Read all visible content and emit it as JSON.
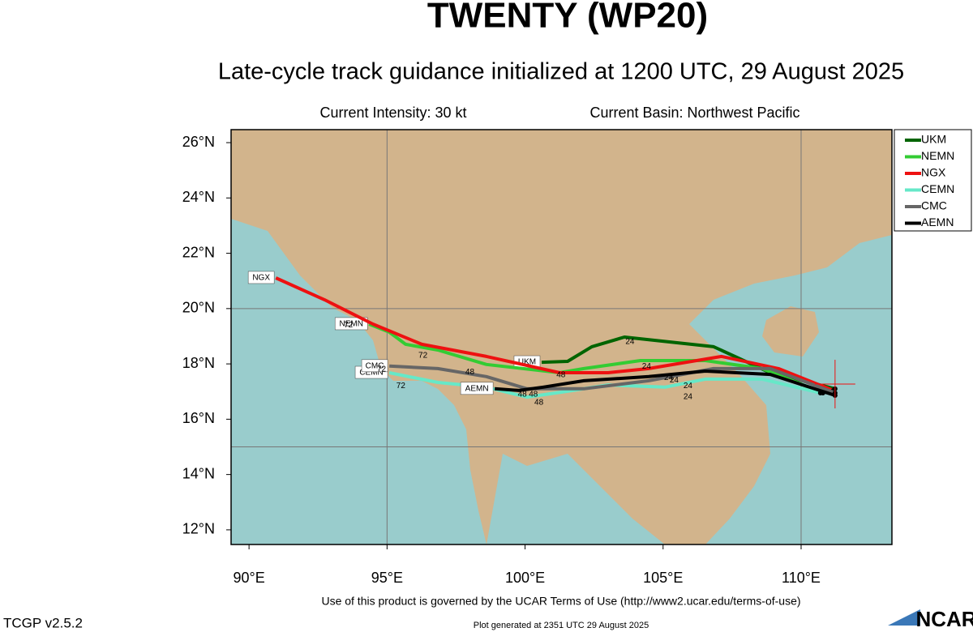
{
  "chart_data": {
    "type": "track",
    "title": "TWENTY (WP20)",
    "subtitle": "Late-cycle track guidance initialized at 1200 UTC, 29 August 2025",
    "intensity": "Current Intensity: 30 kt",
    "basin": "Current Basin: Northwest Pacific",
    "terms": "Use of this product is governed by the UCAR Terms of Use (http://www2.ucar.edu/terms-of-use)",
    "version": "TCGP v2.5.2",
    "generated": "Plot generated at 2351 UTC   29 August 2025",
    "logo": "NCAR",
    "xlim": [
      89.35,
      113.29
    ],
    "ylim": [
      11.47,
      26.47
    ],
    "xticks": [
      {
        "value": 90,
        "label": "90°E"
      },
      {
        "value": 95,
        "label": "95°E"
      },
      {
        "value": 100,
        "label": "100°E"
      },
      {
        "value": 105,
        "label": "105°E"
      },
      {
        "value": 110,
        "label": "110°E"
      }
    ],
    "yticks": [
      {
        "value": 12,
        "label": "12°N"
      },
      {
        "value": 14,
        "label": "14°N"
      },
      {
        "value": 16,
        "label": "16°N"
      },
      {
        "value": 18,
        "label": "18°N"
      },
      {
        "value": 20,
        "label": "20°N"
      },
      {
        "value": 22,
        "label": "22°N"
      },
      {
        "value": 24,
        "label": "24°N"
      },
      {
        "value": 26,
        "label": "26°N"
      }
    ],
    "grid_lon": [
      95,
      110
    ],
    "grid_lat": [
      15,
      20
    ],
    "storm_position": [
      111.23,
      17.27
    ],
    "series": [
      {
        "name": "UKM",
        "color": "#006400",
        "x": [
          111.23,
          108.88,
          106.83,
          103.6,
          102.42,
          101.54,
          100.6
        ],
        "values": [
          17.1,
          17.68,
          18.62,
          18.97,
          18.62,
          18.09,
          18.06
        ]
      },
      {
        "name": "NEMN",
        "color": "#33cc33",
        "x": [
          110.79,
          108.59,
          106.53,
          104.18,
          102.13,
          101.25,
          98.6,
          96.84,
          95.67,
          95.08,
          94.35
        ],
        "values": [
          16.95,
          17.83,
          18.12,
          18.12,
          17.83,
          17.68,
          17.98,
          18.5,
          18.71,
          19.15,
          19.44
        ]
      },
      {
        "name": "NGX",
        "color": "#ee1111",
        "x": [
          111.17,
          109.18,
          107.12,
          104.48,
          103.01,
          101.25,
          98.6,
          96.26,
          94.49,
          92.73,
          90.97
        ],
        "values": [
          17.04,
          17.83,
          18.27,
          17.83,
          17.68,
          17.68,
          18.27,
          18.71,
          19.44,
          20.32,
          21.11
        ]
      },
      {
        "name": "CEMN",
        "color": "#66e8c8",
        "x": [
          110.7,
          108.59,
          106.53,
          105.07,
          103.01,
          101.54,
          100.07,
          98.6,
          96.84,
          95.08
        ],
        "values": [
          16.95,
          17.45,
          17.45,
          17.16,
          17.24,
          17.01,
          16.8,
          17.16,
          17.33,
          17.68
        ]
      },
      {
        "name": "CMC",
        "color": "#666666",
        "x": [
          111.23,
          108.88,
          106.83,
          104.48,
          102.13,
          100.07,
          98.6,
          96.84,
          95.08
        ],
        "values": [
          16.95,
          17.83,
          17.83,
          17.39,
          17.1,
          17.1,
          17.54,
          17.83,
          17.92
        ]
      },
      {
        "name": "AEMN",
        "color": "#000000",
        "x": [
          111.23,
          108.88,
          106.53,
          104.48,
          102.13,
          100.66,
          99.78,
          98.9
        ],
        "values": [
          16.86,
          17.62,
          17.74,
          17.54,
          17.39,
          17.16,
          17.04,
          17.1
        ]
      }
    ],
    "annotations": [
      {
        "text": "24",
        "x": 103.8,
        "y": 18.8
      },
      {
        "text": "48",
        "x": 101.3,
        "y": 17.6
      },
      {
        "text": "72",
        "x": 96.3,
        "y": 18.3
      },
      {
        "text": "48",
        "x": 98.0,
        "y": 17.7
      },
      {
        "text": "72",
        "x": 94.8,
        "y": 17.8
      },
      {
        "text": "72",
        "x": 95.5,
        "y": 17.2
      },
      {
        "text": "48",
        "x": 99.9,
        "y": 16.9
      },
      {
        "text": "48",
        "x": 100.3,
        "y": 16.9
      },
      {
        "text": "48",
        "x": 100.5,
        "y": 16.6
      },
      {
        "text": "24",
        "x": 104.4,
        "y": 17.9
      },
      {
        "text": "24",
        "x": 105.2,
        "y": 17.5
      },
      {
        "text": "24",
        "x": 105.4,
        "y": 17.4
      },
      {
        "text": "24",
        "x": 105.9,
        "y": 17.2
      },
      {
        "text": "24",
        "x": 105.9,
        "y": 16.8
      },
      {
        "text": "72",
        "x": 93.6,
        "y": 19.4
      }
    ]
  }
}
